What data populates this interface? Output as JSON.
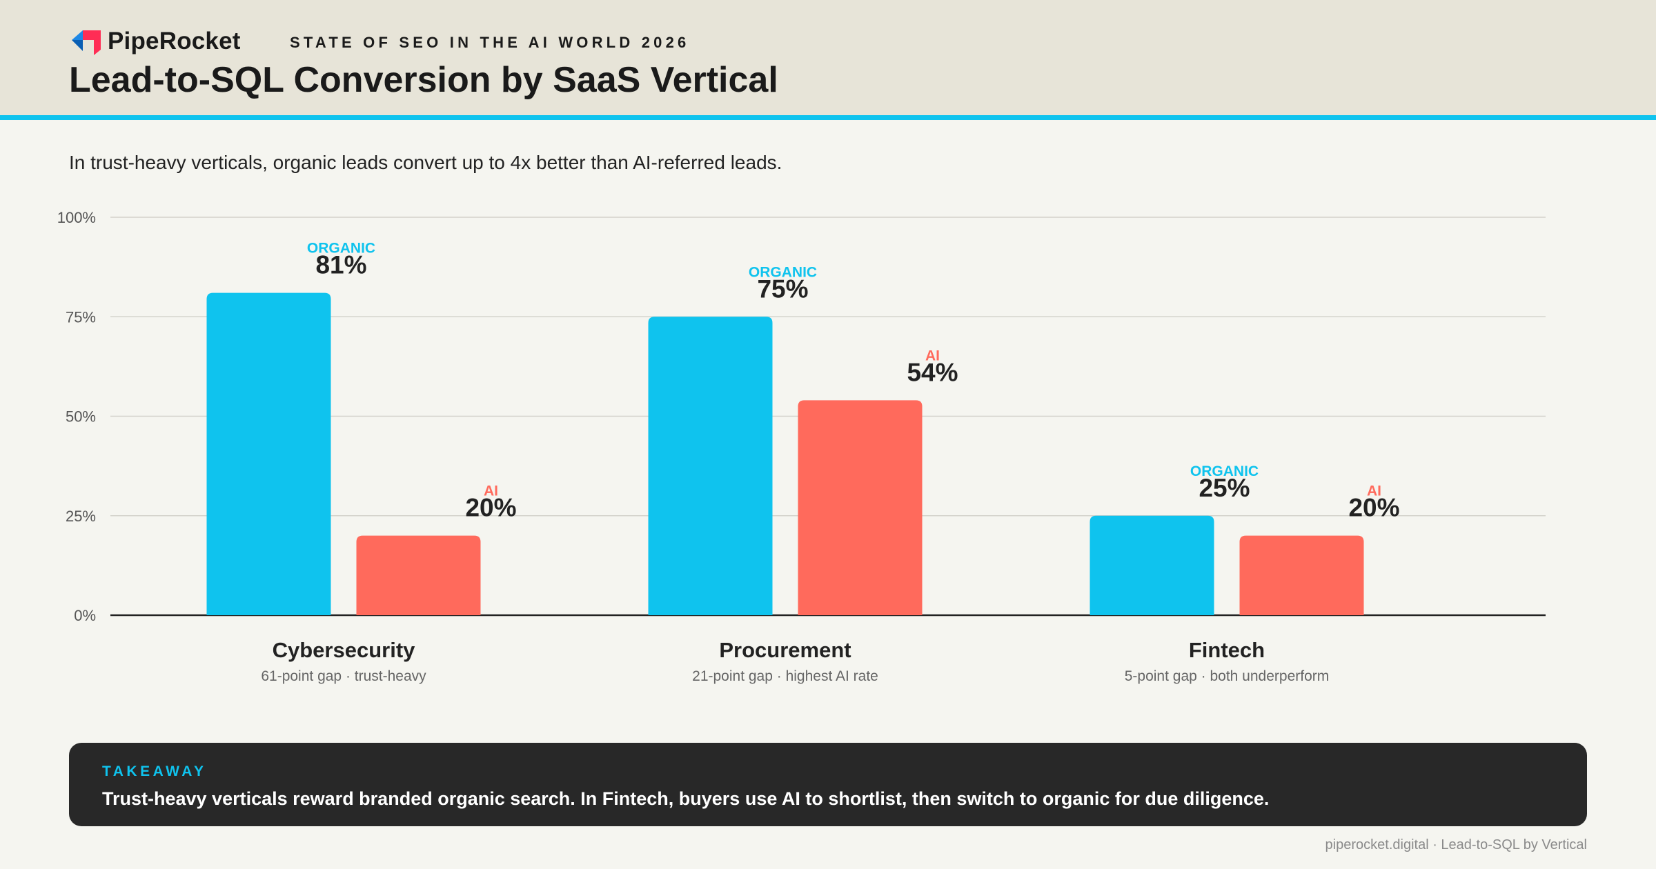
{
  "brand": {
    "name": "PipeRocket",
    "report": "STATE OF SEO IN THE AI WORLD 2026"
  },
  "title": "Lead-to-SQL Conversion by SaaS Vertical",
  "subtitle": "In trust-heavy verticals, organic leads convert up to 4x better than AI-referred leads.",
  "colors": {
    "organic": "#0fc3ee",
    "ai": "#ff6a5c",
    "header_bg": "#e7e4d8",
    "footer_bg": "#282828"
  },
  "chart_data": {
    "type": "bar",
    "title": "Lead-to-SQL Conversion by SaaS Vertical",
    "categories": [
      "Cybersecurity",
      "Procurement",
      "Fintech"
    ],
    "category_notes": [
      "61-point gap · trust-heavy",
      "21-point gap · highest AI rate",
      "5-point gap · both underperform"
    ],
    "series": [
      {
        "name": "ORGANIC",
        "values": [
          81,
          75,
          25
        ],
        "labels": [
          "81%",
          "75%",
          "25%"
        ]
      },
      {
        "name": "AI",
        "values": [
          20,
          54,
          20
        ],
        "labels": [
          "20%",
          "54%",
          "20%"
        ]
      }
    ],
    "ylim": [
      0,
      100
    ],
    "yticks": [
      0,
      25,
      50,
      75,
      100
    ],
    "ytick_labels": [
      "0%",
      "25%",
      "50%",
      "75%",
      "100%"
    ],
    "grid": true,
    "legend": "none"
  },
  "takeaway": {
    "label": "TAKEAWAY",
    "text": "Trust-heavy verticals reward branded organic search. In Fintech, buyers use AI to shortlist, then switch to organic for due diligence."
  },
  "credit": "piperocket.digital · Lead-to-SQL by Vertical"
}
